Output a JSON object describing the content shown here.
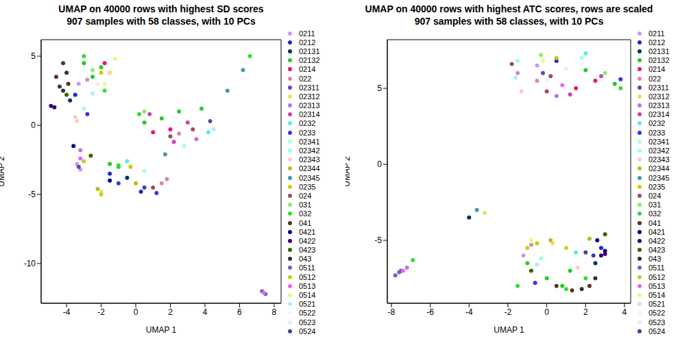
{
  "chart_data": [
    {
      "type": "scatter",
      "title": "UMAP on 40000 rows with highest SD scores",
      "subtitle": "907 samples with 58 classes, with 10 PCs",
      "x_label": "UMAP 1",
      "y_label": "UMAP 2",
      "xlim": [
        -5.47,
        8.4
      ],
      "ylim": [
        -12.87,
        6.19
      ],
      "xticks": [
        -4,
        -2,
        0,
        2,
        4,
        6,
        8
      ],
      "yticks": [
        -10,
        -5,
        0,
        5
      ],
      "legend": "right",
      "series": [
        {
          "name": "0211",
          "color": "#cc99ee",
          "values": [
            [
              -3.3,
              3.0
            ],
            [
              -3.4,
              -2.8
            ],
            [
              -3.2,
              -3.2
            ]
          ]
        },
        {
          "name": "0212",
          "color": "#2222cc",
          "values": [
            [
              -3.5,
              2.2
            ],
            [
              0.3,
              -4.8
            ],
            [
              -1.5,
              -3.5
            ]
          ]
        },
        {
          "name": "02131",
          "color": "#003355",
          "values": [
            [
              -3.8,
              1.8
            ],
            [
              -0.5,
              -3.8
            ]
          ]
        },
        {
          "name": "02132",
          "color": "#22cc22",
          "values": [
            [
              -3.0,
              4.5
            ],
            [
              -2.5,
              3.5
            ],
            [
              -2.0,
              4.2
            ],
            [
              1.5,
              0.5
            ],
            [
              2.5,
              1.0
            ],
            [
              -1.5,
              -2.8
            ],
            [
              0.5,
              0.2
            ],
            [
              3.8,
              1.2
            ],
            [
              -1.0,
              -3.0
            ]
          ]
        },
        {
          "name": "0214",
          "color": "#ee1177",
          "values": [
            [
              -1.8,
              4.5
            ],
            [
              1.0,
              -0.5
            ],
            [
              2.0,
              -0.3
            ]
          ]
        },
        {
          "name": "022",
          "color": "#dd88aa",
          "values": [
            [
              -2.8,
              3.3
            ],
            [
              2.5,
              -0.6
            ],
            [
              1.5,
              -4.2
            ],
            [
              1.8,
              -3.9
            ]
          ]
        },
        {
          "name": "02311",
          "color": "#6644aa",
          "values": [
            [
              -3.3,
              -3.0
            ],
            [
              4.3,
              0.3
            ]
          ]
        },
        {
          "name": "02312",
          "color": "#eedd66",
          "values": [
            [
              -1.5,
              3.8
            ],
            [
              -2.0,
              -4.8
            ]
          ]
        },
        {
          "name": "02313",
          "color": "#bb77dd",
          "values": [
            [
              -3.2,
              -1.8
            ],
            [
              3.5,
              -1.0
            ]
          ]
        },
        {
          "name": "02314",
          "color": "#cc44aa",
          "values": [
            [
              0.8,
              0.8
            ],
            [
              3.0,
              0.2
            ],
            [
              2.2,
              -1.2
            ]
          ]
        },
        {
          "name": "0232",
          "color": "#55eedd",
          "values": [
            [
              4.2,
              -0.5
            ],
            [
              -0.5,
              -2.6
            ]
          ]
        },
        {
          "name": "0233",
          "color": "#3333ee",
          "values": [
            [
              -2.8,
              0.8
            ],
            [
              1.2,
              -4.9
            ]
          ]
        },
        {
          "name": "02341",
          "color": "#aaffdd",
          "values": [
            [
              2.8,
              -1.5
            ],
            [
              0.5,
              -3.3
            ]
          ]
        },
        {
          "name": "02342",
          "color": "#99ffee",
          "values": [
            [
              -3.0,
              1.2
            ],
            [
              -1.0,
              -4.2
            ]
          ]
        },
        {
          "name": "02343",
          "color": "#ffccbb",
          "values": [
            [
              -3.5,
              0.6
            ],
            [
              -3.4,
              0.3
            ]
          ]
        },
        {
          "name": "02344",
          "color": "#bbbb22",
          "values": [
            [
              -2.2,
              -4.6
            ],
            [
              0.0,
              -4.2
            ]
          ]
        },
        {
          "name": "02345",
          "color": "#4499aa",
          "values": [
            [
              5.3,
              2.5
            ],
            [
              6.2,
              4.0
            ],
            [
              1.7,
              -2.1
            ]
          ]
        },
        {
          "name": "0235",
          "color": "#cccc00",
          "values": [
            [
              -2.0,
              3.8
            ],
            [
              -0.3,
              -3.0
            ]
          ]
        },
        {
          "name": "024",
          "color": "#aa4466",
          "values": [
            [
              2.0,
              -0.8
            ],
            [
              1.0,
              -4.5
            ],
            [
              3.3,
              -0.3
            ]
          ]
        },
        {
          "name": "031",
          "color": "#88ee66",
          "values": [
            [
              -2.5,
              4.0
            ],
            [
              0.5,
              1.0
            ]
          ]
        },
        {
          "name": "032",
          "color": "#33dd33",
          "values": [
            [
              -3.0,
              5.0
            ],
            [
              -1.8,
              2.5
            ],
            [
              0.2,
              0.8
            ],
            [
              -1.0,
              -2.9
            ],
            [
              6.6,
              5.0
            ]
          ]
        },
        {
          "name": "041",
          "color": "#553322",
          "values": [
            [
              -4.6,
              3.5
            ],
            [
              -4.2,
              4.5
            ],
            [
              -4.4,
              2.8
            ],
            [
              -3.9,
              3.0
            ]
          ]
        },
        {
          "name": "0421",
          "color": "#000088",
          "values": [
            [
              -3.6,
              -1.5
            ],
            [
              -1.5,
              -4.0
            ]
          ]
        },
        {
          "name": "0422",
          "color": "#330077",
          "values": [
            [
              -4.9,
              1.4
            ],
            [
              -4.7,
              1.3
            ]
          ]
        },
        {
          "name": "0423",
          "color": "#336600",
          "values": [
            [
              -4.0,
              2.2
            ],
            [
              -2.6,
              -2.2
            ]
          ]
        },
        {
          "name": "043",
          "color": "#333333",
          "values": [
            [
              -4.0,
              3.8
            ],
            [
              -4.2,
              2.5
            ]
          ]
        },
        {
          "name": "0511",
          "color": "#6666cc",
          "values": [
            [
              7.3,
              -12.0
            ],
            [
              7.5,
              -12.2
            ]
          ]
        },
        {
          "name": "0512",
          "color": "#cccc22",
          "values": [
            [
              -3.0,
              -2.6
            ],
            [
              -2.0,
              -5.0
            ]
          ]
        },
        {
          "name": "0513",
          "color": "#ee66ee",
          "values": [
            [
              -3.2,
              -2.4
            ],
            [
              7.4,
              -12.1
            ]
          ]
        },
        {
          "name": "0514",
          "color": "#ddff88",
          "values": [
            [
              -1.2,
              4.8
            ],
            [
              -1.8,
              3.0
            ]
          ]
        },
        {
          "name": "0521",
          "color": "#aaeeff",
          "values": [
            [
              -2.5,
              2.3
            ],
            [
              4.5,
              -0.3
            ]
          ]
        },
        {
          "name": "0522",
          "color": "#f4f4f4",
          "values": [
            [
              -3.0,
              4.0
            ]
          ]
        },
        {
          "name": "0523",
          "color": "#ececec",
          "values": [
            [
              -2.2,
              3.0
            ]
          ]
        },
        {
          "name": "0524",
          "color": "#3344aa",
          "values": [
            [
              -1.0,
              -4.2
            ],
            [
              0.5,
              -4.5
            ]
          ]
        }
      ]
    },
    {
      "type": "scatter",
      "title": "UMAP on 40000 rows with highest ATC scores, rows are scaled",
      "subtitle": "907 samples with 58 classes, with 10 PCs",
      "x_label": "UMAP 1",
      "y_label": "UMAP 2",
      "xlim": [
        -8.21,
        4.32
      ],
      "ylim": [
        -9.14,
        8.2
      ],
      "xticks": [
        -8,
        -6,
        -4,
        -2,
        0,
        2,
        4
      ],
      "yticks": [
        -5,
        0,
        5
      ],
      "legend": "right",
      "series": [
        {
          "name": "0211",
          "color": "#cc99ee",
          "values": [
            [
              -0.5,
              6.5
            ],
            [
              -1.2,
              -6.0
            ]
          ]
        },
        {
          "name": "0212",
          "color": "#2222cc",
          "values": [
            [
              0.5,
              6.8
            ],
            [
              2.8,
              -5.5
            ]
          ]
        },
        {
          "name": "02131",
          "color": "#003355",
          "values": [
            [
              -4.0,
              -3.5
            ],
            [
              2.5,
              -6.5
            ]
          ]
        },
        {
          "name": "02132",
          "color": "#22cc22",
          "values": [
            [
              2.0,
              6.2
            ],
            [
              3.5,
              5.3
            ],
            [
              0.0,
              -7.5
            ],
            [
              0.8,
              -8.0
            ],
            [
              -1.0,
              -6.5
            ],
            [
              1.2,
              -7.0
            ]
          ]
        },
        {
          "name": "0214",
          "color": "#ee1177",
          "values": [
            [
              1.5,
              5.0
            ],
            [
              2.5,
              5.5
            ]
          ]
        },
        {
          "name": "022",
          "color": "#dd88aa",
          "values": [
            [
              -1.5,
              6.0
            ],
            [
              -0.5,
              5.5
            ],
            [
              -0.8,
              -5.3
            ]
          ]
        },
        {
          "name": "02311",
          "color": "#6644aa",
          "values": [
            [
              -0.2,
              6.0
            ],
            [
              -7.5,
              -7.0
            ]
          ]
        },
        {
          "name": "02312",
          "color": "#eedd66",
          "values": [
            [
              0.3,
              -5.2
            ],
            [
              -3.2,
              -3.2
            ]
          ]
        },
        {
          "name": "02313",
          "color": "#bb77dd",
          "values": [
            [
              0.5,
              4.5
            ],
            [
              -7.2,
              -6.8
            ]
          ]
        },
        {
          "name": "02314",
          "color": "#cc44aa",
          "values": [
            [
              1.2,
              4.6
            ],
            [
              2.8,
              5.8
            ]
          ]
        },
        {
          "name": "0232",
          "color": "#55eedd",
          "values": [
            [
              2.0,
              7.3
            ],
            [
              1.5,
              -5.8
            ]
          ]
        },
        {
          "name": "0233",
          "color": "#3333ee",
          "values": [
            [
              3.8,
              5.6
            ],
            [
              -0.6,
              -7.8
            ]
          ]
        },
        {
          "name": "02341",
          "color": "#aaffdd",
          "values": [
            [
              1.8,
              7.0
            ]
          ]
        },
        {
          "name": "02342",
          "color": "#99ffee",
          "values": [
            [
              -1.5,
              6.8
            ],
            [
              -0.3,
              -6.2
            ]
          ]
        },
        {
          "name": "02343",
          "color": "#ffccbb",
          "values": [
            [
              -1.3,
              4.8
            ],
            [
              1.6,
              -6.8
            ]
          ]
        },
        {
          "name": "02344",
          "color": "#bbbb22",
          "values": [
            [
              0.2,
              -5.0
            ],
            [
              2.2,
              -4.9
            ]
          ]
        },
        {
          "name": "02345",
          "color": "#4499aa",
          "values": [
            [
              -3.6,
              -3.0
            ]
          ]
        },
        {
          "name": "0235",
          "color": "#cccc00",
          "values": [
            [
              -0.5,
              -5.2
            ],
            [
              0.5,
              7.0
            ]
          ]
        },
        {
          "name": "024",
          "color": "#aa4466",
          "values": [
            [
              -1.8,
              6.6
            ],
            [
              0.2,
              5.8
            ],
            [
              0.0,
              4.8
            ]
          ]
        },
        {
          "name": "031",
          "color": "#88ee66",
          "values": [
            [
              3.0,
              6.0
            ],
            [
              -0.3,
              7.2
            ]
          ]
        },
        {
          "name": "032",
          "color": "#33dd33",
          "values": [
            [
              3.8,
              5.0
            ],
            [
              1.0,
              -8.2
            ],
            [
              -1.5,
              -8.0
            ],
            [
              2.0,
              -7.5
            ],
            [
              -6.9,
              -6.3
            ]
          ]
        },
        {
          "name": "041",
          "color": "#553322",
          "values": [
            [
              1.3,
              -8.3
            ],
            [
              0.5,
              -8.0
            ],
            [
              2.2,
              -8.0
            ]
          ]
        },
        {
          "name": "0421",
          "color": "#000088",
          "values": [
            [
              2.6,
              -5.0
            ],
            [
              3.0,
              -5.7
            ]
          ]
        },
        {
          "name": "0422",
          "color": "#330077",
          "values": [
            [
              2.8,
              -6.0
            ],
            [
              3.0,
              -5.9
            ]
          ]
        },
        {
          "name": "0423",
          "color": "#336600",
          "values": [
            [
              3.0,
              -4.6
            ],
            [
              -0.8,
              -7.0
            ]
          ]
        },
        {
          "name": "043",
          "color": "#333333",
          "values": [
            [
              2.5,
              -7.5
            ],
            [
              1.8,
              -8.2
            ]
          ]
        },
        {
          "name": "0511",
          "color": "#6666cc",
          "values": [
            [
              -7.8,
              -7.3
            ],
            [
              -7.6,
              -7.1
            ]
          ]
        },
        {
          "name": "0512",
          "color": "#cccc22",
          "values": [
            [
              -1.0,
              -5.5
            ],
            [
              1.0,
              -5.5
            ]
          ]
        },
        {
          "name": "0513",
          "color": "#ee66ee",
          "values": [
            [
              -7.4,
              -7.0
            ],
            [
              0.8,
              5.2
            ]
          ]
        },
        {
          "name": "0514",
          "color": "#ddff88",
          "values": [
            [
              -0.8,
              -5.0
            ],
            [
              -0.2,
              6.8
            ]
          ]
        },
        {
          "name": "0521",
          "color": "#aaeeff",
          "values": [
            [
              -1.6,
              5.7
            ],
            [
              -0.5,
              -6.6
            ]
          ]
        },
        {
          "name": "0522",
          "color": "#f4f4f4",
          "values": [
            [
              0.0,
              5.5
            ]
          ]
        },
        {
          "name": "0523",
          "color": "#ececec",
          "values": [
            [
              1.0,
              6.3
            ]
          ]
        },
        {
          "name": "0524",
          "color": "#3344aa",
          "values": [
            [
              2.4,
              -6.0
            ],
            [
              2.0,
              -5.8
            ]
          ]
        }
      ]
    }
  ]
}
